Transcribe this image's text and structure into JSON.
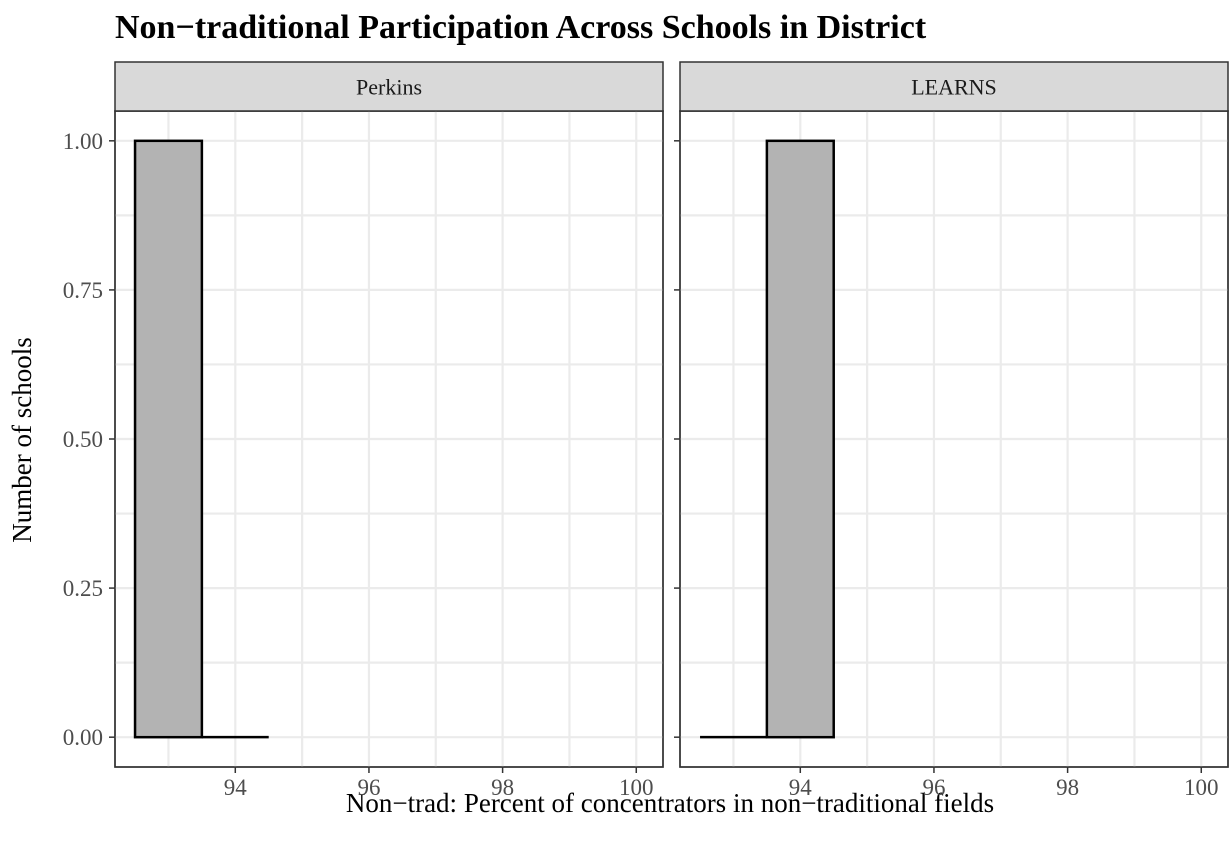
{
  "chart_data": {
    "type": "bar",
    "title": "Non−traditional Participation Across Schools in District",
    "xlabel": "Non−trad: Percent of concentrators in non−traditional fields",
    "ylabel": "Number of schools",
    "xlim": [
      92.2,
      100.4
    ],
    "ylim": [
      -0.05,
      1.05
    ],
    "x_ticks": [
      94,
      96,
      98,
      100
    ],
    "x_tick_labels": [
      "94",
      "96",
      "98",
      "100"
    ],
    "y_ticks": [
      0,
      0.25,
      0.5,
      0.75,
      1.0
    ],
    "y_tick_labels": [
      "0.00",
      "0.25",
      "0.50",
      "0.75",
      "1.00"
    ],
    "grid": true,
    "bin_width": 1,
    "facets": [
      {
        "label": "Perkins",
        "bins": [
          {
            "x_center": 93,
            "count": 1
          },
          {
            "x_center": 94,
            "count": 0
          }
        ]
      },
      {
        "label": "LEARNS",
        "bins": [
          {
            "x_center": 93,
            "count": 0
          },
          {
            "x_center": 94,
            "count": 1
          }
        ]
      }
    ],
    "colors": {
      "bar_fill": "#b3b3b3",
      "bar_outline": "#000000",
      "strip_fill": "#d9d9d9"
    }
  }
}
